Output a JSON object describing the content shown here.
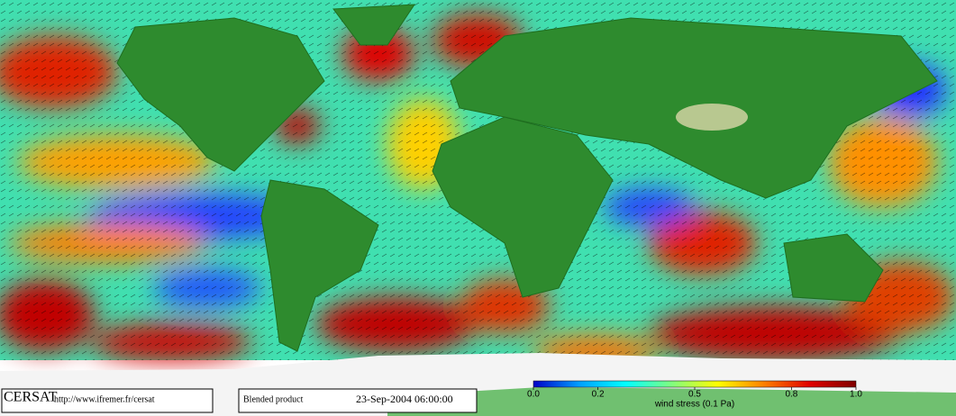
{
  "footer": {
    "logo": "CERSAT",
    "url": "http://www.ifremer.fr/cersat",
    "product": "Blended product",
    "date": "23-Sep-2004 06:00:00"
  },
  "colorbar": {
    "label": "wind stress (0.1 Pa)",
    "lim": [
      0,
      1
    ],
    "ticks": [
      {
        "value": 0,
        "label": "0.0"
      },
      0.2,
      0.5,
      0.8,
      {
        "value": 1,
        "label": "1.0"
      }
    ],
    "colors": [
      "#0000c8",
      "#00a0ff",
      "#00ffff",
      "#80ff80",
      "#ffff00",
      "#ff8000",
      "#e00000",
      "#800000"
    ]
  }
}
